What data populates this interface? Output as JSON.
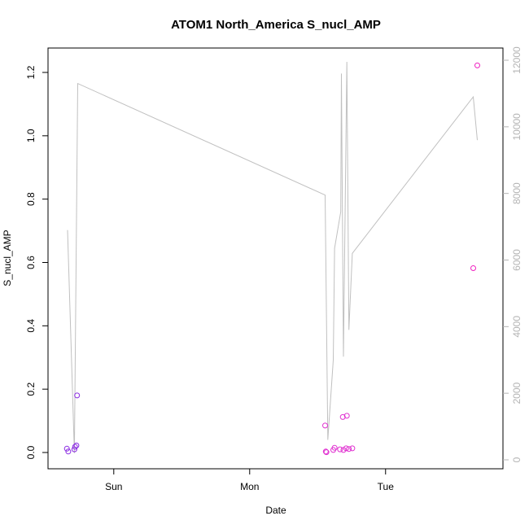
{
  "chart_data": {
    "type": "scatter",
    "title": "ATOM1 North_America S_nucl_AMP",
    "xlabel": "Date",
    "ylabel": "S_nucl_AMP",
    "x_ticks": [
      {
        "label": "Sun",
        "t": 1.0
      },
      {
        "label": "Mon",
        "t": 2.0
      },
      {
        "label": "Tue",
        "t": 3.0
      }
    ],
    "xlim": [
      0.6,
      3.75
    ],
    "ylim": [
      0.0,
      1.25
    ],
    "y_ticks": [
      0.0,
      0.2,
      0.4,
      0.6,
      0.8,
      1.0,
      1.2
    ],
    "y2lim": [
      0,
      12000
    ],
    "y2_ticks": [
      0,
      2000,
      4000,
      6000,
      8000,
      10000,
      12000
    ],
    "grid": false,
    "series": [
      {
        "kind": "points",
        "axis": "left",
        "values": [
          {
            "t": 0.655,
            "y": 0.012,
            "color": "#8a2be2"
          },
          {
            "t": 0.665,
            "y": 0.003,
            "color": "#8a2be2"
          },
          {
            "t": 0.71,
            "y": 0.01,
            "color": "#8a2be2"
          },
          {
            "t": 0.715,
            "y": 0.018,
            "color": "#8a2be2"
          },
          {
            "t": 0.725,
            "y": 0.022,
            "color": "#8a2be2"
          },
          {
            "t": 0.73,
            "y": 0.18,
            "color": "#8a2be2"
          },
          {
            "t": 2.555,
            "y": 0.085,
            "color": "#e030d0"
          },
          {
            "t": 2.56,
            "y": 0.003,
            "color": "#e030d0"
          },
          {
            "t": 2.565,
            "y": 0.001,
            "color": "#e030d0"
          },
          {
            "t": 2.615,
            "y": 0.008,
            "color": "#e030d0"
          },
          {
            "t": 2.625,
            "y": 0.015,
            "color": "#e030d0"
          },
          {
            "t": 2.665,
            "y": 0.01,
            "color": "#e030d0"
          },
          {
            "t": 2.685,
            "y": 0.112,
            "color": "#e030d0"
          },
          {
            "t": 2.69,
            "y": 0.008,
            "color": "#e030d0"
          },
          {
            "t": 2.71,
            "y": 0.013,
            "color": "#e030d0"
          },
          {
            "t": 2.715,
            "y": 0.116,
            "color": "#e030d0"
          },
          {
            "t": 2.73,
            "y": 0.011,
            "color": "#e030d0"
          },
          {
            "t": 2.755,
            "y": 0.013,
            "color": "#e030d0"
          },
          {
            "t": 3.645,
            "y": 0.582,
            "color": "#f020c0"
          },
          {
            "t": 3.675,
            "y": 1.222,
            "color": "#f020c0"
          }
        ]
      },
      {
        "kind": "line",
        "axis": "right",
        "color": "#c0c0c0",
        "values": [
          {
            "t": 0.66,
            "y": 6900
          },
          {
            "t": 0.71,
            "y": 200
          },
          {
            "t": 0.735,
            "y": 11300
          },
          {
            "t": 2.555,
            "y": 7950
          },
          {
            "t": 2.575,
            "y": 600
          },
          {
            "t": 2.615,
            "y": 3000
          },
          {
            "t": 2.625,
            "y": 6350
          },
          {
            "t": 2.67,
            "y": 7450
          },
          {
            "t": 2.675,
            "y": 11600
          },
          {
            "t": 2.69,
            "y": 3100
          },
          {
            "t": 2.715,
            "y": 11950
          },
          {
            "t": 2.73,
            "y": 3900
          },
          {
            "t": 2.755,
            "y": 6200
          },
          {
            "t": 3.645,
            "y": 10900
          },
          {
            "t": 3.675,
            "y": 9600
          }
        ]
      }
    ]
  }
}
